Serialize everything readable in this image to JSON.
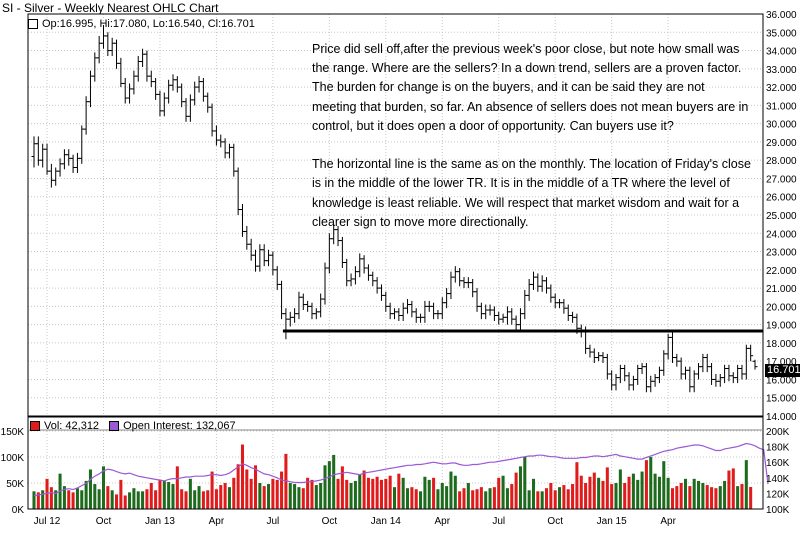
{
  "chart_title": "SI - Silver - Weekly Nearest OHLC Chart",
  "price_legend": "Op:16.995, Hi:17.080, Lo:16.540, Cl:16.701",
  "last_price_label": "16.701",
  "annotation": {
    "paragraph1": "Price did sell off,after the previous week's poor close, but note how small was the range.  Where are the sellers?  In a down trend, sellers are a proven factor.  The burden for change is on the buyers, and it can be said they are not meeting that burden, so far.  An absence of sellers does not mean buyers are in control, but it does open a door of opportunity.  Can buyers use it?",
    "paragraph2": "The horizontal line is the same as on the monthly.  The location of Friday's close is in the middle of the lower TR.   It is in the middle of a TR where the level of knowledge is least reliable.  We will respect that market wisdom and wait for a clearer sign to move more directionally."
  },
  "volume_legend": {
    "vol": "Vol: 42,312",
    "oi": "Open Interest: 132,067"
  },
  "colors": {
    "up": "#1e6b1e",
    "down": "#e01b1b",
    "oi_line": "#9b59d6",
    "grid": "#c8c8c8",
    "bar": "#000000"
  },
  "chart_data": [
    {
      "type": "ohlc",
      "title": "SI - Silver - Weekly Nearest OHLC Chart",
      "ylim": [
        14,
        36
      ],
      "y_ticks": [
        "14.000",
        "15.000",
        "16.000",
        "17.000",
        "18.000",
        "19.000",
        "20.000",
        "21.000",
        "22.000",
        "23.000",
        "24.000",
        "25.000",
        "26.000",
        "27.000",
        "28.000",
        "29.000",
        "30.000",
        "31.000",
        "32.000",
        "33.000",
        "34.000",
        "35.000",
        "36.000"
      ],
      "x_ticks": [
        "Jul 12",
        "Oct",
        "Jan 13",
        "Apr",
        "Jul",
        "Oct",
        "Jan 14",
        "Apr",
        "Jul",
        "Oct",
        "Jan 15",
        "Apr"
      ],
      "horizontal_line": 18.65,
      "last_close": 16.701,
      "closes": [
        28.9,
        28.0,
        28.6,
        27.4,
        26.9,
        27.4,
        27.8,
        28.3,
        28.1,
        27.6,
        28.1,
        29.7,
        31.2,
        32.6,
        33.6,
        34.4,
        34.8,
        34.0,
        34.4,
        33.3,
        32.2,
        31.4,
        31.9,
        32.6,
        33.4,
        33.8,
        32.6,
        32.3,
        31.6,
        30.7,
        31.4,
        32.1,
        32.4,
        32.0,
        31.2,
        30.4,
        31.3,
        32.0,
        32.3,
        31.5,
        30.9,
        29.6,
        29.1,
        29.0,
        28.4,
        28.7,
        27.4,
        25.3,
        24.1,
        23.4,
        22.8,
        22.2,
        23.1,
        22.5,
        22.8,
        22.0,
        21.2,
        19.6,
        19.3,
        19.4,
        19.6,
        20.5,
        20.1,
        20.0,
        19.6,
        19.7,
        20.4,
        22.1,
        23.7,
        24.2,
        23.6,
        22.4,
        21.4,
        21.5,
        21.9,
        22.6,
        22.1,
        21.7,
        21.4,
        21.0,
        20.6,
        20.0,
        19.6,
        19.7,
        19.5,
        19.9,
        20.1,
        19.7,
        19.4,
        19.4,
        20.0,
        20.0,
        19.6,
        19.6,
        20.2,
        20.7,
        21.6,
        21.9,
        21.4,
        21.3,
        21.3,
        20.8,
        20.0,
        19.6,
        19.8,
        19.8,
        19.5,
        19.3,
        19.4,
        19.7,
        19.3,
        19.0,
        19.6,
        20.6,
        21.2,
        21.6,
        21.1,
        21.4,
        21.0,
        20.5,
        20.2,
        20.2,
        19.9,
        19.5,
        19.4,
        18.8,
        18.6,
        17.7,
        17.5,
        17.2,
        17.3,
        17.2,
        16.3,
        15.7,
        16.1,
        16.6,
        16.2,
        15.7,
        16.0,
        16.6,
        16.7,
        15.6,
        15.9,
        16.1,
        16.5,
        17.4,
        18.3,
        17.2,
        17.0,
        16.3,
        16.5,
        15.6,
        16.3,
        16.7,
        17.2,
        16.7,
        16.0,
        15.9,
        16.1,
        16.6,
        16.2,
        16.1,
        16.6,
        16.3,
        17.7,
        17.3,
        16.7
      ],
      "opens": [
        28.2,
        28.9,
        28.0,
        28.6,
        27.4,
        26.9,
        27.4,
        27.8,
        28.3,
        28.1,
        27.6,
        28.1,
        29.7,
        31.2,
        32.6,
        33.6,
        34.4,
        34.8,
        34.0,
        34.4,
        33.3,
        32.2,
        31.4,
        31.9,
        32.6,
        33.4,
        33.8,
        32.6,
        32.3,
        31.6,
        30.7,
        31.4,
        32.1,
        32.4,
        32.0,
        31.2,
        30.4,
        31.3,
        32.0,
        32.3,
        31.5,
        30.9,
        29.6,
        29.1,
        29.0,
        28.4,
        28.7,
        27.4,
        25.3,
        24.1,
        23.4,
        22.8,
        22.2,
        23.1,
        22.5,
        22.8,
        22.0,
        21.2,
        19.6,
        19.3,
        19.4,
        19.6,
        20.5,
        20.1,
        20.0,
        19.6,
        19.7,
        20.4,
        22.1,
        23.7,
        24.2,
        23.6,
        22.4,
        21.4,
        21.5,
        21.9,
        22.6,
        22.1,
        21.7,
        21.4,
        21.0,
        20.6,
        20.0,
        19.6,
        19.7,
        19.5,
        19.9,
        20.1,
        19.7,
        19.4,
        19.4,
        20.0,
        20.0,
        19.6,
        19.6,
        20.2,
        20.7,
        21.6,
        21.9,
        21.4,
        21.3,
        21.3,
        20.8,
        20.0,
        19.6,
        19.8,
        19.8,
        19.5,
        19.3,
        19.4,
        19.7,
        19.3,
        19.0,
        19.6,
        20.6,
        21.2,
        21.6,
        21.1,
        21.4,
        21.0,
        20.5,
        20.2,
        20.2,
        19.9,
        19.5,
        19.4,
        18.8,
        18.6,
        17.7,
        17.5,
        17.2,
        17.3,
        17.2,
        16.3,
        15.7,
        16.1,
        16.6,
        16.2,
        15.7,
        16.0,
        16.6,
        16.7,
        15.6,
        15.9,
        16.1,
        16.5,
        17.4,
        18.3,
        17.2,
        17.0,
        16.3,
        16.5,
        15.6,
        16.3,
        16.7,
        17.2,
        16.7,
        16.0,
        15.9,
        16.1,
        16.6,
        16.2,
        16.1,
        16.6,
        16.3,
        17.7,
        16.995
      ],
      "highs": [
        29.3,
        29.3,
        28.9,
        28.9,
        27.8,
        27.6,
        28.1,
        28.6,
        28.6,
        28.3,
        28.4,
        29.9,
        31.5,
        32.9,
        33.9,
        34.8,
        35.4,
        35.0,
        34.7,
        34.6,
        33.6,
        32.5,
        32.2,
        32.9,
        33.7,
        34.1,
        34.0,
        32.9,
        32.5,
        31.8,
        31.7,
        32.4,
        32.7,
        32.6,
        32.2,
        31.4,
        31.6,
        32.3,
        32.6,
        32.5,
        31.7,
        31.1,
        29.9,
        29.4,
        29.2,
        28.9,
        28.9,
        27.6,
        25.6,
        24.4,
        23.7,
        23.1,
        23.4,
        23.4,
        23.1,
        23.0,
        22.2,
        21.4,
        19.9,
        19.7,
        19.9,
        20.8,
        20.7,
        20.3,
        20.2,
        19.9,
        20.7,
        22.4,
        24.0,
        24.5,
        24.4,
        23.8,
        22.6,
        21.8,
        22.2,
        22.9,
        22.8,
        22.3,
        21.9,
        21.6,
        21.2,
        20.8,
        20.2,
        19.9,
        19.9,
        20.2,
        20.4,
        20.3,
        19.9,
        19.6,
        20.3,
        20.3,
        20.2,
        19.8,
        20.5,
        21.0,
        21.9,
        22.2,
        22.1,
        21.6,
        21.6,
        21.5,
        21.0,
        20.2,
        20.1,
        20.1,
        20.0,
        19.7,
        19.6,
        20.0,
        19.9,
        19.5,
        19.9,
        20.9,
        21.5,
        21.9,
        21.8,
        21.7,
        21.6,
        21.2,
        20.7,
        20.4,
        20.4,
        20.1,
        19.7,
        19.6,
        19.0,
        18.9,
        17.9,
        17.7,
        17.5,
        17.5,
        17.4,
        16.5,
        16.3,
        16.8,
        16.8,
        16.4,
        16.2,
        16.8,
        16.9,
        16.9,
        16.2,
        16.3,
        16.7,
        17.6,
        18.5,
        18.6,
        17.4,
        17.2,
        16.7,
        16.7,
        16.5,
        16.9,
        17.4,
        17.4,
        16.9,
        16.3,
        16.3,
        16.8,
        16.8,
        16.4,
        16.8,
        16.8,
        17.9,
        17.9,
        17.08
      ],
      "lows": [
        27.6,
        27.7,
        27.6,
        27.2,
        26.5,
        26.6,
        27.1,
        27.5,
        27.7,
        27.3,
        27.3,
        27.8,
        29.4,
        30.9,
        32.3,
        33.3,
        34.1,
        33.7,
        33.7,
        33.0,
        32.0,
        31.1,
        31.1,
        31.6,
        32.3,
        33.1,
        32.3,
        32.0,
        31.3,
        30.4,
        30.4,
        31.1,
        31.8,
        31.7,
        30.9,
        30.1,
        30.1,
        31.0,
        31.7,
        31.2,
        30.6,
        29.3,
        28.8,
        28.7,
        28.1,
        28.1,
        27.1,
        25.0,
        23.8,
        23.1,
        22.5,
        21.9,
        21.9,
        22.2,
        22.2,
        21.7,
        20.9,
        19.3,
        18.2,
        18.9,
        19.1,
        19.3,
        19.8,
        19.7,
        19.3,
        19.3,
        19.4,
        20.1,
        21.8,
        23.4,
        23.3,
        22.1,
        21.1,
        21.1,
        21.2,
        21.6,
        21.8,
        21.4,
        21.1,
        20.7,
        20.3,
        19.7,
        19.3,
        19.3,
        19.2,
        19.2,
        19.6,
        19.4,
        19.1,
        19.1,
        19.1,
        19.7,
        19.3,
        19.3,
        19.3,
        19.9,
        20.4,
        21.3,
        21.1,
        21.0,
        21.0,
        20.5,
        19.7,
        19.3,
        19.3,
        19.5,
        19.2,
        19.0,
        19.1,
        19.0,
        19.0,
        18.7,
        18.7,
        19.3,
        20.3,
        20.9,
        20.8,
        20.8,
        20.7,
        20.2,
        19.9,
        19.9,
        19.6,
        19.2,
        19.1,
        18.5,
        18.3,
        17.4,
        17.2,
        16.9,
        17.0,
        16.9,
        16.0,
        15.4,
        15.4,
        15.8,
        15.9,
        15.4,
        15.4,
        15.7,
        16.3,
        15.3,
        15.3,
        15.6,
        15.8,
        16.2,
        17.1,
        16.9,
        16.7,
        16.0,
        16.0,
        15.3,
        15.3,
        16.0,
        16.4,
        16.4,
        15.7,
        15.6,
        15.6,
        15.8,
        15.9,
        15.8,
        15.8,
        16.0,
        16.0,
        17.0,
        16.54
      ]
    },
    {
      "type": "bar",
      "title": "",
      "series": [
        {
          "name": "Vol: 42,312",
          "values": [
            34000,
            32000,
            36000,
            58000,
            42000,
            36000,
            68000,
            44000,
            36000,
            32000,
            40000,
            36000,
            54000,
            76000,
            48000,
            38000,
            82000,
            44000,
            36000,
            28000,
            56000,
            26000,
            32000,
            40000,
            34000,
            34000,
            38000,
            50000,
            36000,
            56000,
            54000,
            52000,
            48000,
            82000,
            38000,
            34000,
            58000,
            36000,
            44000,
            34000,
            36000,
            72000,
            38000,
            46000,
            50000,
            42000,
            60000,
            86000,
            124000,
            76000,
            58000,
            84000,
            50000,
            44000,
            48000,
            58000,
            56000,
            72000,
            106000,
            50000,
            48000,
            42000,
            40000,
            60000,
            56000,
            46000,
            50000,
            84000,
            92000,
            104000,
            58000,
            82000,
            56000,
            50000,
            54000,
            66000,
            74000,
            60000,
            58000,
            62000,
            56000,
            58000,
            64000,
            42000,
            68000,
            60000,
            40000,
            42000,
            38000,
            34000,
            62000,
            56000,
            60000,
            38000,
            50000,
            44000,
            72000,
            64000,
            34000,
            40000,
            50000,
            36000,
            38000,
            42000,
            34000,
            40000,
            42000,
            60000,
            64000,
            40000,
            48000,
            70000,
            82000,
            100000,
            36000,
            58000,
            34000,
            34000,
            40000,
            50000,
            36000,
            42000,
            46000,
            38000,
            48000,
            90000,
            64000,
            50000,
            62000,
            70000,
            60000,
            54000,
            80000,
            48000,
            50000,
            76000,
            50000,
            62000,
            68000,
            56000,
            72000,
            94000,
            100000,
            68000,
            62000,
            92000,
            60000,
            40000,
            44000,
            50000,
            58000,
            44000,
            58000,
            54000,
            50000,
            46000,
            42000,
            40000,
            44000,
            54000,
            74000,
            78000,
            44000,
            48000,
            94000,
            42312
          ]
        },
        {
          "name": "Open Interest: 132,067",
          "values": [
            117000,
            118000,
            119000,
            120000,
            121000,
            120000,
            123000,
            125000,
            126000,
            125000,
            127000,
            130000,
            133000,
            138000,
            142000,
            145000,
            149000,
            151000,
            150000,
            148000,
            146000,
            145000,
            146000,
            144000,
            142000,
            141000,
            140000,
            139000,
            138000,
            137000,
            136000,
            138000,
            139000,
            139000,
            140000,
            141000,
            141000,
            142000,
            142000,
            142000,
            143000,
            144000,
            144000,
            143000,
            144000,
            146000,
            150000,
            154000,
            158000,
            156000,
            153000,
            151000,
            148000,
            145000,
            144000,
            142000,
            140000,
            137000,
            136000,
            135000,
            134000,
            134000,
            134000,
            135000,
            135000,
            136000,
            137000,
            139000,
            141000,
            144000,
            145000,
            146000,
            147000,
            146000,
            145000,
            144000,
            146000,
            147000,
            148000,
            149000,
            150000,
            151000,
            152000,
            153000,
            154000,
            155000,
            156000,
            156000,
            157000,
            157000,
            158000,
            159000,
            160000,
            159000,
            158000,
            158000,
            159000,
            159000,
            157000,
            156000,
            156000,
            157000,
            157000,
            158000,
            159000,
            160000,
            160000,
            161000,
            162000,
            163000,
            164000,
            165000,
            166000,
            167000,
            168000,
            168000,
            169000,
            169000,
            168000,
            167000,
            167000,
            166000,
            165000,
            165000,
            165000,
            165000,
            166000,
            166000,
            167000,
            168000,
            168000,
            167000,
            168000,
            169000,
            170000,
            168000,
            167000,
            166000,
            165000,
            164000,
            164000,
            166000,
            168000,
            170000,
            172000,
            174000,
            175000,
            176000,
            178000,
            179000,
            180000,
            181000,
            182000,
            182000,
            181000,
            179000,
            177000,
            175000,
            175000,
            177000,
            178000,
            179000,
            180000,
            182000,
            184000,
            183000,
            181000,
            178000,
            176000,
            132067
          ]
        }
      ],
      "y_ticks_left": [
        "0K",
        "50K",
        "100K",
        "150K"
      ],
      "y_ticks_right": [
        "100K",
        "120K",
        "140K",
        "160K",
        "180K",
        "200K"
      ],
      "x_ticks": [
        "Jul 12",
        "Oct",
        "Jan 13",
        "Apr",
        "Jul",
        "Oct",
        "Jan 14",
        "Apr",
        "Jul",
        "Oct",
        "Jan 15",
        "Apr"
      ]
    }
  ]
}
